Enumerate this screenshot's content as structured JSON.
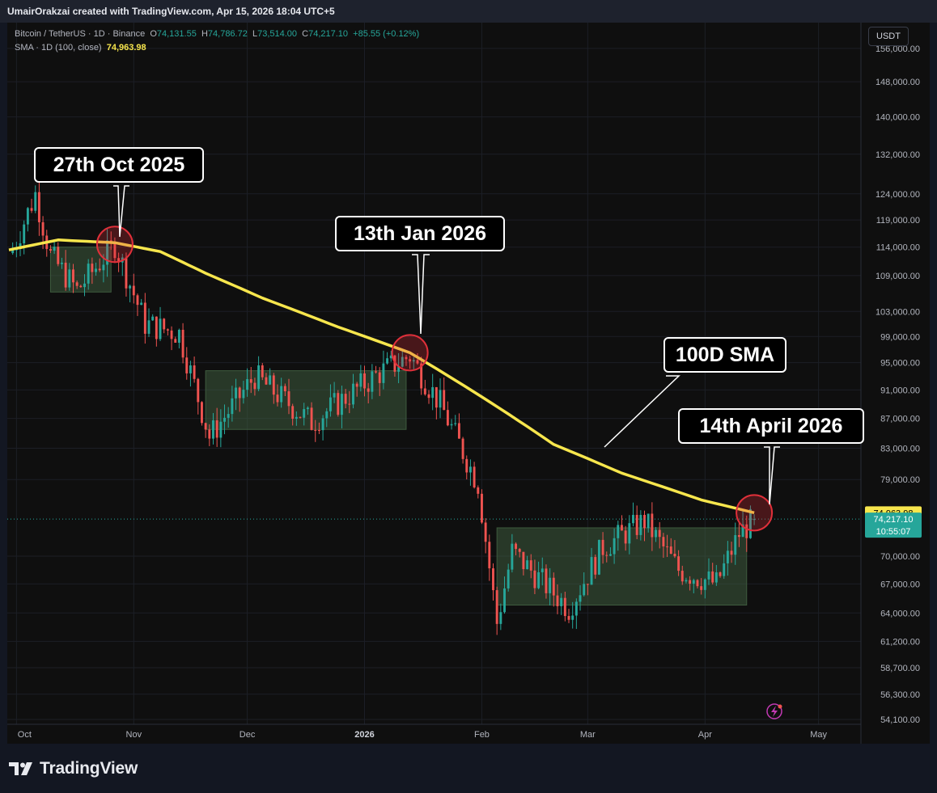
{
  "credit": "UmairOrakzai created with TradingView.com, Apr 15, 2026 18:04 UTC+5",
  "legend": {
    "symbol": "Bitcoin / TetherUS · 1D · Binance",
    "o_label": "O",
    "o_value": "74,131.55",
    "h_label": "H",
    "h_value": "74,786.72",
    "l_label": "L",
    "l_value": "73,514.00",
    "c_label": "C",
    "c_value": "74,217.10",
    "change": "+85.55 (+0.12%)",
    "sma_label": "SMA · 1D (100, close)",
    "sma_value": "74,963.98"
  },
  "currency_button": "USDT",
  "brand": "TradingView",
  "colors": {
    "background": "#0f0f0f",
    "up": "#26a69a",
    "down": "#ef5350",
    "sma": "#f7e64d",
    "range_box": "#3e5b3e",
    "marker_circle": "#e0303a"
  },
  "callouts": {
    "oct": "27th Oct 2025",
    "jan": "13th Jan 2026",
    "sma": "100D SMA",
    "apr": "14th April 2026"
  },
  "price_labels": {
    "sma": "74,963.98",
    "last": "74,217.10",
    "countdown": "10:55:07"
  },
  "chart_data": {
    "type": "candlestick",
    "title": "Bitcoin / TetherUS · 1D · Binance",
    "y_scale": "log",
    "y_ticks": [
      "156,000.00",
      "148,000.00",
      "140,000.00",
      "132,000.00",
      "124,000.00",
      "119,000.00",
      "114,000.00",
      "109,000.00",
      "103,000.00",
      "99,000.00",
      "95,000.00",
      "91,000.00",
      "87,000.00",
      "83,000.00",
      "79,000.00",
      "70,000.00",
      "67,000.00",
      "64,000.00",
      "61,200.00",
      "58,700.00",
      "56,300.00",
      "54,100.00"
    ],
    "x_ticks": [
      "Oct",
      "Nov",
      "Dec",
      "2026",
      "Feb",
      "Mar",
      "Apr",
      "May"
    ],
    "x_ticks_bold": [
      "2026"
    ],
    "ylim": [
      54100,
      160000
    ],
    "xlim": [
      "2025-09-29",
      "2026-05-09"
    ],
    "ohlc_anchors": [
      {
        "date": "2025-09-30",
        "close": 113500
      },
      {
        "date": "2025-10-06",
        "close": 124000
      },
      {
        "date": "2025-10-10",
        "close": 112500
      },
      {
        "date": "2025-10-17",
        "close": 106500
      },
      {
        "date": "2025-10-27",
        "close": 114500
      },
      {
        "date": "2025-11-04",
        "close": 101000
      },
      {
        "date": "2025-11-13",
        "close": 99500
      },
      {
        "date": "2025-11-21",
        "close": 84500
      },
      {
        "date": "2025-12-03",
        "close": 93000
      },
      {
        "date": "2025-12-18",
        "close": 86500
      },
      {
        "date": "2026-01-05",
        "close": 93500
      },
      {
        "date": "2026-01-13",
        "close": 96000
      },
      {
        "date": "2026-01-21",
        "close": 89000
      },
      {
        "date": "2026-01-31",
        "close": 78500
      },
      {
        "date": "2026-02-05",
        "close": 63000
      },
      {
        "date": "2026-02-09",
        "close": 70500
      },
      {
        "date": "2026-02-24",
        "close": 64500
      },
      {
        "date": "2026-03-05",
        "close": 71000
      },
      {
        "date": "2026-03-16",
        "close": 74000
      },
      {
        "date": "2026-03-25",
        "close": 68500
      },
      {
        "date": "2026-04-04",
        "close": 67000
      },
      {
        "date": "2026-04-10",
        "close": 72500
      },
      {
        "date": "2026-04-14",
        "close": 74217.1
      }
    ],
    "last_candle": {
      "open": 74131.55,
      "high": 74786.72,
      "low": 73514.0,
      "close": 74217.1
    },
    "sma_series": {
      "name": "SMA · 1D (100, close)",
      "points": [
        {
          "date": "2025-09-29",
          "value": 113500
        },
        {
          "date": "2025-10-12",
          "value": 115300
        },
        {
          "date": "2025-10-27",
          "value": 114800
        },
        {
          "date": "2025-11-08",
          "value": 113200
        },
        {
          "date": "2025-11-20",
          "value": 109400
        },
        {
          "date": "2025-12-05",
          "value": 105200
        },
        {
          "date": "2025-12-25",
          "value": 100500
        },
        {
          "date": "2026-01-13",
          "value": 96500
        },
        {
          "date": "2026-02-01",
          "value": 90000
        },
        {
          "date": "2026-02-20",
          "value": 83500
        },
        {
          "date": "2026-03-10",
          "value": 79800
        },
        {
          "date": "2026-03-31",
          "value": 76500
        },
        {
          "date": "2026-04-14",
          "value": 74963.98
        }
      ]
    },
    "range_boxes": [
      {
        "from": "2025-10-10",
        "to": "2025-10-26",
        "low": 106200,
        "high": 114000
      },
      {
        "from": "2025-11-20",
        "to": "2026-01-12",
        "low": 85500,
        "high": 93800
      },
      {
        "from": "2026-02-05",
        "to": "2026-04-12",
        "low": 64800,
        "high": 73200
      }
    ],
    "marker_dates": [
      "2025-10-27",
      "2026-01-13",
      "2026-04-14"
    ]
  }
}
